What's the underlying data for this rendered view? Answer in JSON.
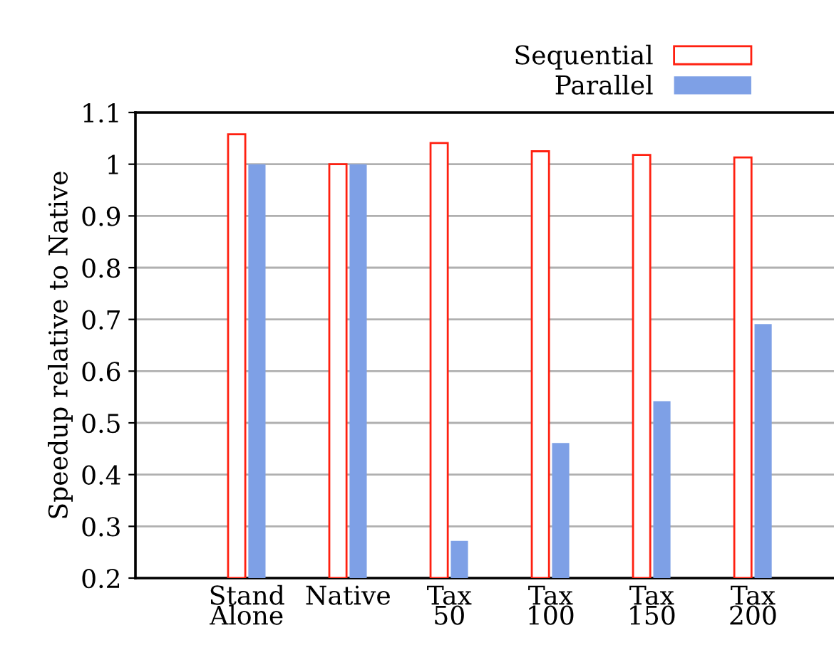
{
  "chart_data": {
    "type": "bar",
    "ylabel": "Speedup relative to Native",
    "categories": [
      "Stand\nAlone",
      "Native",
      "Tax\n50",
      "Tax\n100",
      "Tax\n150",
      "Tax\n200"
    ],
    "series": [
      {
        "name": "Sequential",
        "color": "#ff2010",
        "values": [
          1.058,
          1.0,
          1.041,
          1.025,
          1.018,
          1.013
        ]
      },
      {
        "name": "Parallel",
        "color": "#7ea0e6",
        "values": [
          1.0,
          1.0,
          0.272,
          0.461,
          0.542,
          0.691
        ]
      }
    ],
    "ylim": [
      0.2,
      1.1
    ],
    "yticks": [
      0.2,
      0.3,
      0.4,
      0.5,
      0.6,
      0.7,
      0.8,
      0.9,
      1,
      1.1
    ],
    "grid": "y",
    "legend": "top right"
  }
}
